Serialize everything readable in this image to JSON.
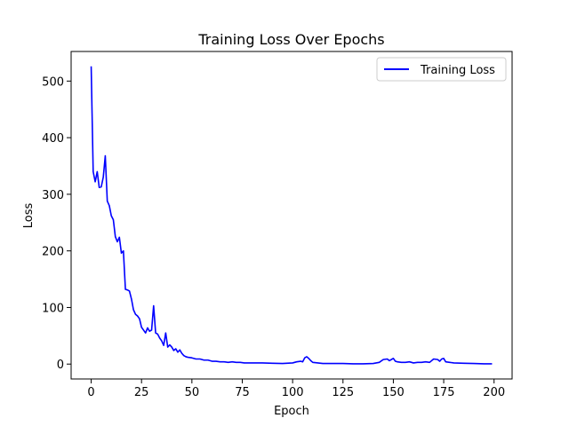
{
  "chart_data": {
    "type": "line",
    "title": "Training Loss Over Epochs",
    "xlabel": "Epoch",
    "ylabel": "Loss",
    "xlim": [
      -9.95,
      208.95
    ],
    "ylim": [
      -26.3,
      552.3
    ],
    "xticks": [
      0,
      25,
      50,
      75,
      100,
      125,
      150,
      175,
      200
    ],
    "yticks": [
      0,
      100,
      200,
      300,
      400,
      500
    ],
    "grid": false,
    "legend_position": "top-right",
    "series": [
      {
        "name": "Training Loss",
        "color": "#0000ff",
        "points": [
          [
            0,
            526
          ],
          [
            1,
            340
          ],
          [
            2,
            322
          ],
          [
            3,
            340
          ],
          [
            4,
            312
          ],
          [
            5,
            313
          ],
          [
            6,
            330
          ],
          [
            7,
            368
          ],
          [
            8,
            288
          ],
          [
            9,
            280
          ],
          [
            10,
            262
          ],
          [
            11,
            255
          ],
          [
            12,
            225
          ],
          [
            13,
            216
          ],
          [
            14,
            224
          ],
          [
            15,
            196
          ],
          [
            16,
            200
          ],
          [
            17,
            132
          ],
          [
            18,
            131
          ],
          [
            19,
            129
          ],
          [
            20,
            115
          ],
          [
            21,
            96
          ],
          [
            22,
            88
          ],
          [
            23,
            85
          ],
          [
            24,
            80
          ],
          [
            25,
            65
          ],
          [
            26,
            60
          ],
          [
            27,
            55
          ],
          [
            28,
            64
          ],
          [
            29,
            58
          ],
          [
            30,
            60
          ],
          [
            31,
            103
          ],
          [
            32,
            55
          ],
          [
            33,
            53
          ],
          [
            34,
            46
          ],
          [
            35,
            41
          ],
          [
            36,
            33
          ],
          [
            37,
            55
          ],
          [
            38,
            30
          ],
          [
            39,
            34
          ],
          [
            40,
            30
          ],
          [
            41,
            24
          ],
          [
            42,
            27
          ],
          [
            43,
            21
          ],
          [
            44,
            25
          ],
          [
            45,
            19
          ],
          [
            46,
            15
          ],
          [
            47,
            13
          ],
          [
            48,
            12
          ],
          [
            50,
            11
          ],
          [
            52,
            9
          ],
          [
            54,
            9
          ],
          [
            56,
            7
          ],
          [
            58,
            7
          ],
          [
            60,
            5
          ],
          [
            62,
            5
          ],
          [
            64,
            4
          ],
          [
            66,
            4
          ],
          [
            68,
            3
          ],
          [
            70,
            4
          ],
          [
            72,
            3
          ],
          [
            74,
            3
          ],
          [
            76,
            2
          ],
          [
            80,
            2
          ],
          [
            85,
            2
          ],
          [
            90,
            1.5
          ],
          [
            95,
            1
          ],
          [
            100,
            2
          ],
          [
            102,
            4
          ],
          [
            104,
            5
          ],
          [
            105,
            4
          ],
          [
            106,
            11
          ],
          [
            107,
            13
          ],
          [
            108,
            10
          ],
          [
            109,
            6
          ],
          [
            110,
            3
          ],
          [
            115,
            1
          ],
          [
            120,
            1
          ],
          [
            125,
            1
          ],
          [
            130,
            0.5
          ],
          [
            135,
            0.5
          ],
          [
            140,
            1
          ],
          [
            143,
            3
          ],
          [
            145,
            8
          ],
          [
            147,
            9
          ],
          [
            148,
            6
          ],
          [
            149,
            8
          ],
          [
            150,
            10
          ],
          [
            151,
            5
          ],
          [
            152,
            4
          ],
          [
            154,
            3
          ],
          [
            156,
            3
          ],
          [
            158,
            4
          ],
          [
            160,
            2
          ],
          [
            162,
            3
          ],
          [
            164,
            3
          ],
          [
            166,
            4
          ],
          [
            168,
            3
          ],
          [
            170,
            9
          ],
          [
            172,
            8
          ],
          [
            173,
            5
          ],
          [
            174,
            9
          ],
          [
            175,
            10
          ],
          [
            176,
            4
          ],
          [
            178,
            3
          ],
          [
            180,
            2
          ],
          [
            185,
            1.5
          ],
          [
            190,
            1
          ],
          [
            195,
            0.5
          ],
          [
            199,
            0.5
          ]
        ]
      }
    ]
  }
}
